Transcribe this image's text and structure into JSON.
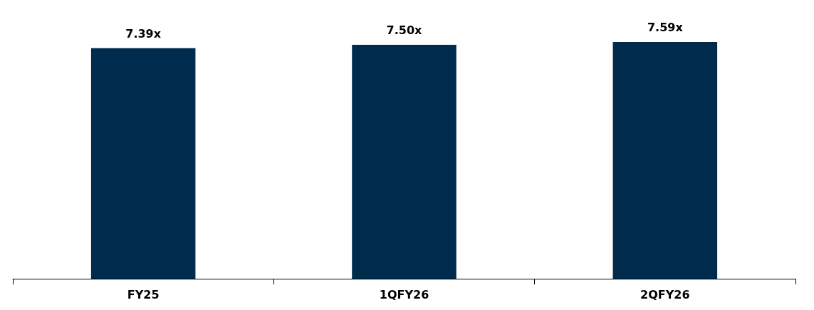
{
  "chart_data": {
    "type": "bar",
    "categories": [
      "FY25",
      "1QFY26",
      "2QFY26"
    ],
    "values": [
      7.39,
      7.5,
      7.59
    ],
    "value_labels": [
      "7.39x",
      "7.50x",
      "7.59x"
    ],
    "color": "#002b4c"
  }
}
